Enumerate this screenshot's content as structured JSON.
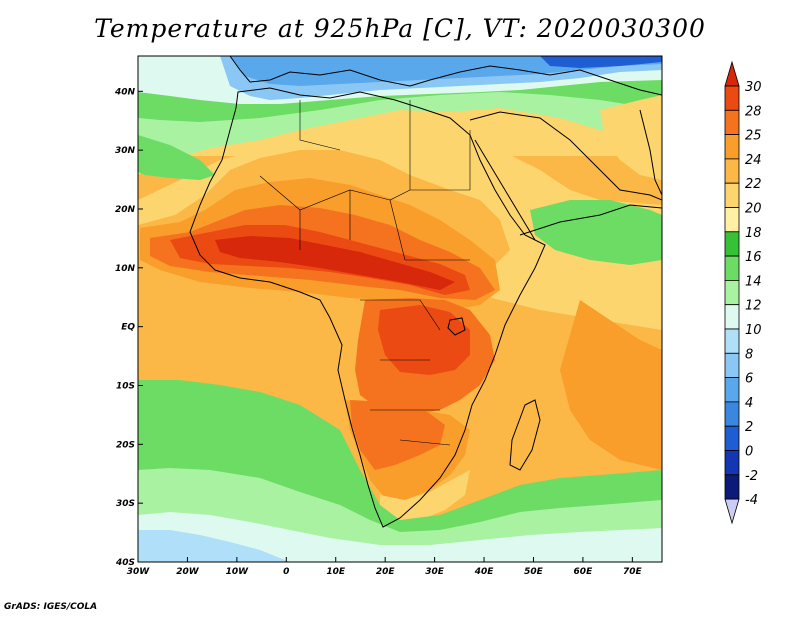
{
  "title": "Temperature at 925hPa [C], VT: 2020030300",
  "credit": "GrADS: IGES/COLA",
  "map": {
    "lon_range": [
      -30,
      76
    ],
    "lat_range": [
      -40,
      46
    ],
    "lon_ticks": [
      {
        "lon": -30,
        "label": "30W"
      },
      {
        "lon": -20,
        "label": "20W"
      },
      {
        "lon": -10,
        "label": "10W"
      },
      {
        "lon": 0,
        "label": "0"
      },
      {
        "lon": 10,
        "label": "10E"
      },
      {
        "lon": 20,
        "label": "20E"
      },
      {
        "lon": 30,
        "label": "30E"
      },
      {
        "lon": 40,
        "label": "40E"
      },
      {
        "lon": 50,
        "label": "50E"
      },
      {
        "lon": 60,
        "label": "60E"
      },
      {
        "lon": 70,
        "label": "70E"
      }
    ],
    "lat_ticks": [
      {
        "lat": 40,
        "label": "40N"
      },
      {
        "lat": 30,
        "label": "30N"
      },
      {
        "lat": 20,
        "label": "20N"
      },
      {
        "lat": 10,
        "label": "10N"
      },
      {
        "lat": 0,
        "label": "EQ"
      },
      {
        "lat": -10,
        "label": "10S"
      },
      {
        "lat": -20,
        "label": "20S"
      },
      {
        "lat": -30,
        "label": "30S"
      },
      {
        "lat": -40,
        "label": "40S"
      }
    ]
  },
  "colorbar": {
    "levels": [
      "30",
      "28",
      "25",
      "24",
      "22",
      "20",
      "18",
      "16",
      "14",
      "12",
      "10",
      "8",
      "6",
      "4",
      "2",
      "0",
      "-2",
      "-4"
    ],
    "colors": {
      "above30": "#d7280b",
      "28_30": "#eb4a12",
      "25_28": "#f5731e",
      "24_25": "#f99d2b",
      "22_24": "#fbb846",
      "20_22": "#fdd56e",
      "18_20": "#fff0a6",
      "16_18": "#37c136",
      "14_16": "#6ddc65",
      "12_14": "#a9f2a2",
      "10_12": "#def9f0",
      "8_10": "#afdff9",
      "6_8": "#8bc7f4",
      "4_6": "#5aa8ec",
      "2_4": "#3b87e0",
      "0_2": "#1f5ed2",
      "-2_0": "#1436b2",
      "-4_-2": "#0c1a7a",
      "below-4": "#ccccf5"
    }
  }
}
